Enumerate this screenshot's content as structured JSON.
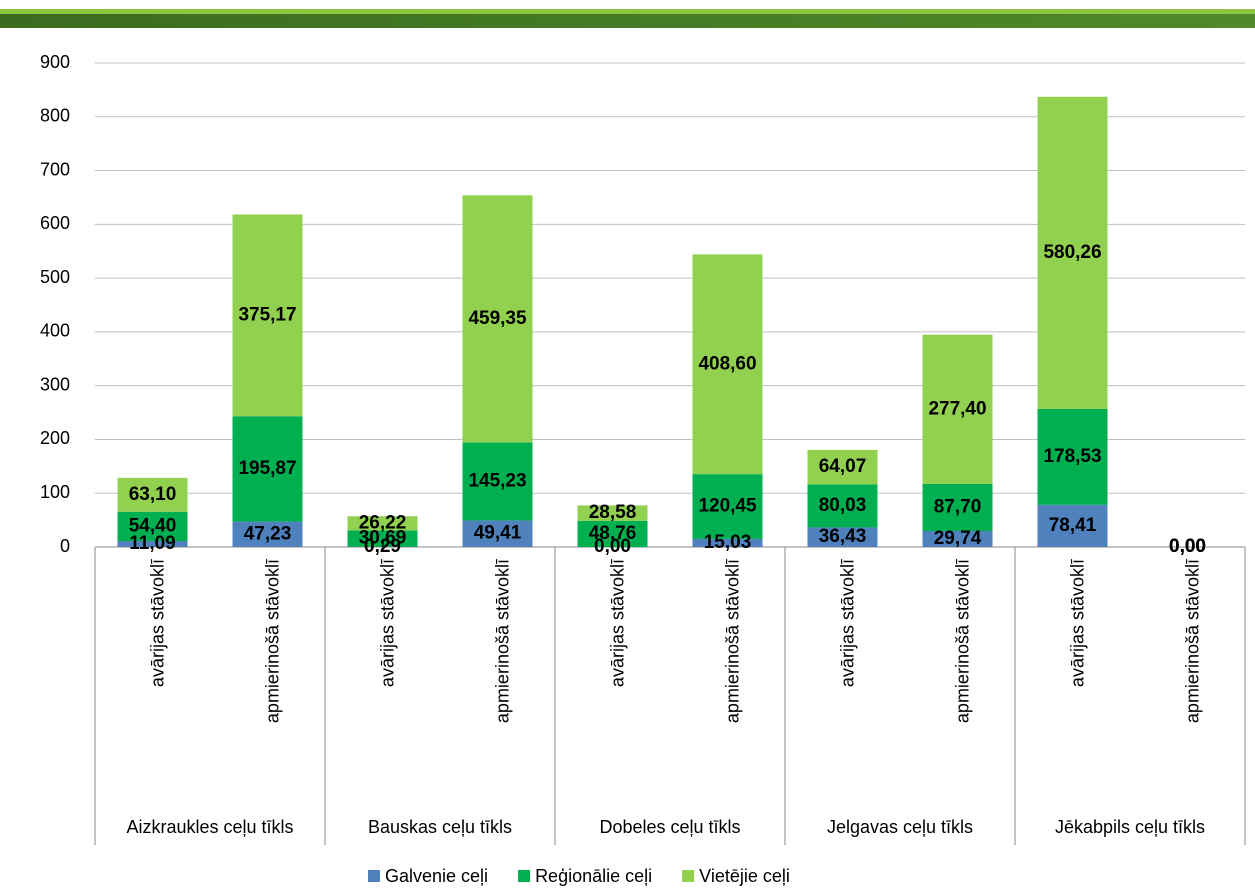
{
  "chart_data": {
    "type": "stacked_bar",
    "categories": [
      "avārijas stāvoklī",
      "apmierinošā stāvoklī",
      "avārijas stāvoklī",
      "apmierinošā stāvoklī",
      "avārijas stāvoklī",
      "apmierinošā stāvoklī",
      "avārijas stāvoklī",
      "apmierinošā stāvoklī",
      "avārijas stāvoklī",
      "apmierinošā stāvoklī"
    ],
    "groups": [
      "Aizkraukles ceļu tīkls",
      "Bauskas ceļu tīkls",
      "Dobeles ceļu tīkls",
      "Jelgavas ceļu tīkls",
      "Jēkabpils ceļu tīkls"
    ],
    "series": [
      {
        "name": "Galvenie ceļi",
        "color": "#4f81bd",
        "values": [
          11.09,
          47.23,
          0.29,
          49.41,
          0.0,
          15.03,
          36.43,
          29.74,
          78.41,
          0.0
        ],
        "value_labels": [
          "11,09",
          "47,23",
          "0,29",
          "49,41",
          "0,00",
          "15,03",
          "36,43",
          "29,74",
          "78,41",
          "0,00"
        ]
      },
      {
        "name": "Reģionālie ceļi",
        "color": "#00b050",
        "values": [
          54.4,
          195.87,
          30.69,
          145.23,
          48.76,
          120.45,
          80.03,
          87.7,
          178.53,
          0.0
        ],
        "value_labels": [
          "54,40",
          "195,87",
          "30,69",
          "145,23",
          "48,76",
          "120,45",
          "80,03",
          "87,70",
          "178,53",
          "0,00"
        ]
      },
      {
        "name": "Vietējie ceļi",
        "color": "#92d050",
        "values": [
          63.1,
          375.17,
          26.22,
          459.35,
          28.58,
          408.6,
          64.07,
          277.4,
          580.26,
          0.0
        ],
        "value_labels": [
          "63,10",
          "375,17",
          "26,22",
          "459,35",
          "28,58",
          "408,60",
          "64,07",
          "277,40",
          "580,26",
          "0,00"
        ]
      }
    ],
    "ylim": [
      0,
      900
    ],
    "yticks": [
      0,
      100,
      200,
      300,
      400,
      500,
      600,
      700,
      800,
      900
    ],
    "grid": true,
    "legend": "bottom"
  }
}
